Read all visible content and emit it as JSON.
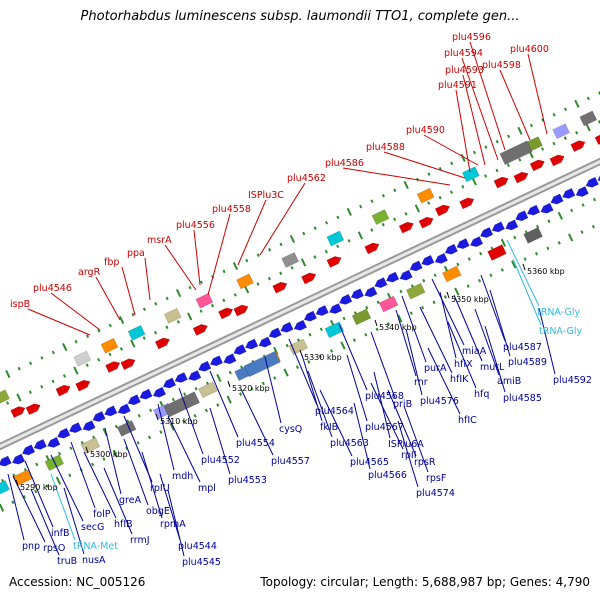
{
  "title": "Photorhabdus luminescens subsp. laumondii TTO1, complete gen...",
  "footer": {
    "accession": "Accession: NC_005126",
    "summary": "Topology: circular; Length: 5,688,987 bp; Genes: 4,790"
  },
  "colors": {
    "upper_label": "#cc0000",
    "lower_label": "#000099",
    "rna_label": "#33bbdd",
    "backbone": "#8c8c8c"
  },
  "ruler": [
    "5290 kbp",
    "5300 kbp",
    "5310 kbp",
    "5320 kbp",
    "5330 kbp",
    "5340 kbp",
    "5350 kbp",
    "5360 kbp"
  ],
  "upper_labels": [
    "plu4600",
    "plu4596",
    "plu4594",
    "plu4598",
    "plu4593",
    "plu4591",
    "plu4590",
    "plu4588",
    "plu4586",
    "plu4562",
    "ISPlu3C",
    "plu4558",
    "plu4556",
    "msrA",
    "ppa",
    "fbp",
    "argR",
    "plu4546",
    "ispB"
  ],
  "lower_labels": [
    "tRNA-Gly",
    "tRNA-Gly",
    "plu4587",
    "plu4589",
    "plu4592",
    "miaA",
    "mutL",
    "amiB",
    "plu4585",
    "hfIX",
    "hfIK",
    "hfq",
    "purA",
    "rnr",
    "plu4576",
    "hfIC",
    "plu4568",
    "priB",
    "plu4567",
    "ISPlu6A",
    "rpII",
    "rpsR",
    "rpsF",
    "plu4574",
    "plu4566",
    "plu4565",
    "plu4564",
    "plu4563",
    "fkIB",
    "cysQ",
    "plu4557",
    "plu4554",
    "plu4552",
    "plu4553",
    "mdh",
    "mpl",
    "rpIU",
    "obgE",
    "rpmA",
    "greA",
    "hfIB",
    "rrmJ",
    "folP",
    "plu4544",
    "plu4545",
    "secG",
    "infB",
    "tRNA-Met",
    "nusA",
    "pnp",
    "rpsO",
    "truB"
  ]
}
